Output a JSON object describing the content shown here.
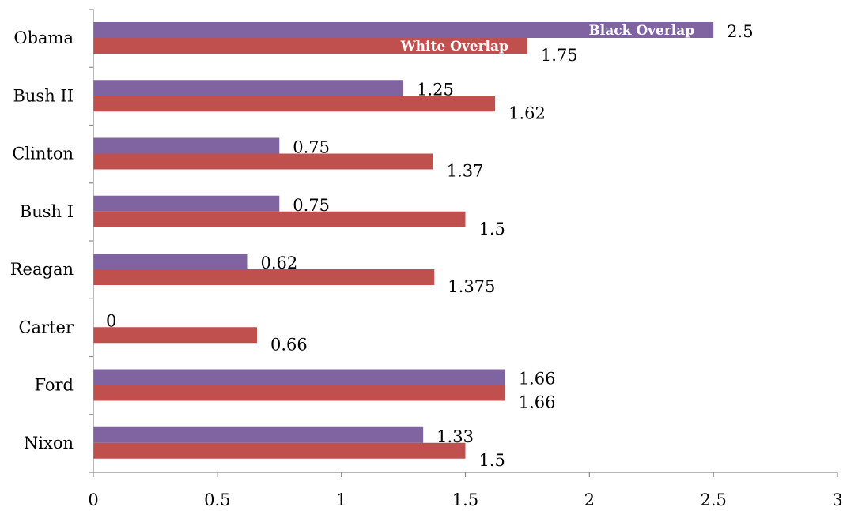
{
  "chart_data": {
    "type": "bar",
    "orientation": "horizontal",
    "categories": [
      "Obama",
      "Bush II",
      "Clinton",
      "Bush I",
      "Reagan",
      "Carter",
      "Ford",
      "Nixon"
    ],
    "series": [
      {
        "name": "Black Overlap",
        "color": "#8064a2",
        "values": [
          2.5,
          1.25,
          0.75,
          0.75,
          0.62,
          0,
          1.66,
          1.33
        ],
        "labels": [
          "2.5",
          "1.25",
          "0.75",
          "0.75",
          "0.62",
          "0",
          "1.66",
          "1.33"
        ]
      },
      {
        "name": "White Overlap",
        "color": "#c0504d",
        "values": [
          1.75,
          1.62,
          1.37,
          1.5,
          1.375,
          0.66,
          1.66,
          1.5
        ],
        "labels": [
          "1.75",
          "1.62",
          "1.37",
          "1.5",
          "1.375",
          "0.66",
          "1.66",
          "1.5"
        ]
      }
    ],
    "xlim": [
      0,
      3
    ],
    "xticks": [
      "0",
      "0.5",
      "1",
      "1.5",
      "2",
      "2.5",
      "3"
    ],
    "grid": false,
    "legend": "none"
  }
}
